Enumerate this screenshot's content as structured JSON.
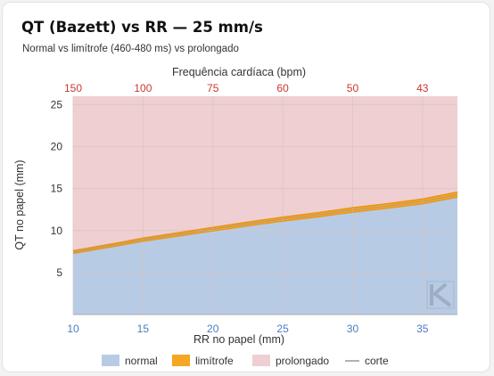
{
  "header": {
    "title": "QT (Bazett) vs RR — 25 mm/s",
    "subtitle": "Normal vs limítrofe (460-480 ms) vs prolongado"
  },
  "chart_data": {
    "type": "area",
    "title": "QT (Bazett) vs RR — 25 mm/s",
    "subtitle": "Normal vs limítrofe (460-480 ms) vs prolongado",
    "xlabel": "RR no papel (mm)",
    "ylabel": "QT no papel (mm)",
    "x2label": "Frequência cardíaca (bpm)",
    "xlim": [
      10,
      37.5
    ],
    "ylim": [
      0,
      26
    ],
    "xticks": [
      10,
      15,
      20,
      25,
      30,
      35
    ],
    "yticks": [
      5,
      10,
      15,
      20,
      25
    ],
    "x2ticks": [
      {
        "x": 10,
        "label": "150"
      },
      {
        "x": 15,
        "label": "100"
      },
      {
        "x": 20,
        "label": "75"
      },
      {
        "x": 25,
        "label": "60"
      },
      {
        "x": 30,
        "label": "50"
      },
      {
        "x": 35,
        "label": "43"
      }
    ],
    "grid": true,
    "legend_position": "bottom",
    "x": [
      10,
      12.5,
      15,
      17.5,
      20,
      22.5,
      25,
      27.5,
      30,
      32.5,
      35,
      37.5
    ],
    "series": [
      {
        "name": "normal",
        "color": "#b8cbe5",
        "values": [
          7.27,
          7.97,
          8.71,
          9.32,
          9.94,
          10.55,
          11.11,
          11.62,
          12.18,
          12.65,
          13.18,
          13.97
        ]
      },
      {
        "name": "limítrofe",
        "color": "#f5a623",
        "values": [
          7.59,
          8.32,
          9.09,
          9.73,
          10.37,
          11.01,
          11.59,
          12.12,
          12.71,
          13.2,
          13.75,
          14.58
        ]
      },
      {
        "name": "prolongado",
        "color": "#efcfd1",
        "values": [
          26,
          26,
          26,
          26,
          26,
          26,
          26,
          26,
          26,
          26,
          26,
          26
        ]
      },
      {
        "name": "corte",
        "color": "#b09a84",
        "values": [
          7.44,
          8.15,
          8.9,
          9.52,
          10.15,
          10.78,
          11.35,
          11.87,
          12.44,
          12.92,
          13.46,
          14.27
        ]
      }
    ],
    "colors": {
      "x_tick": "#4a7cc0",
      "x2_tick": "#c7382e",
      "y_tick": "#333333",
      "grid": "#d6c5c5"
    }
  }
}
